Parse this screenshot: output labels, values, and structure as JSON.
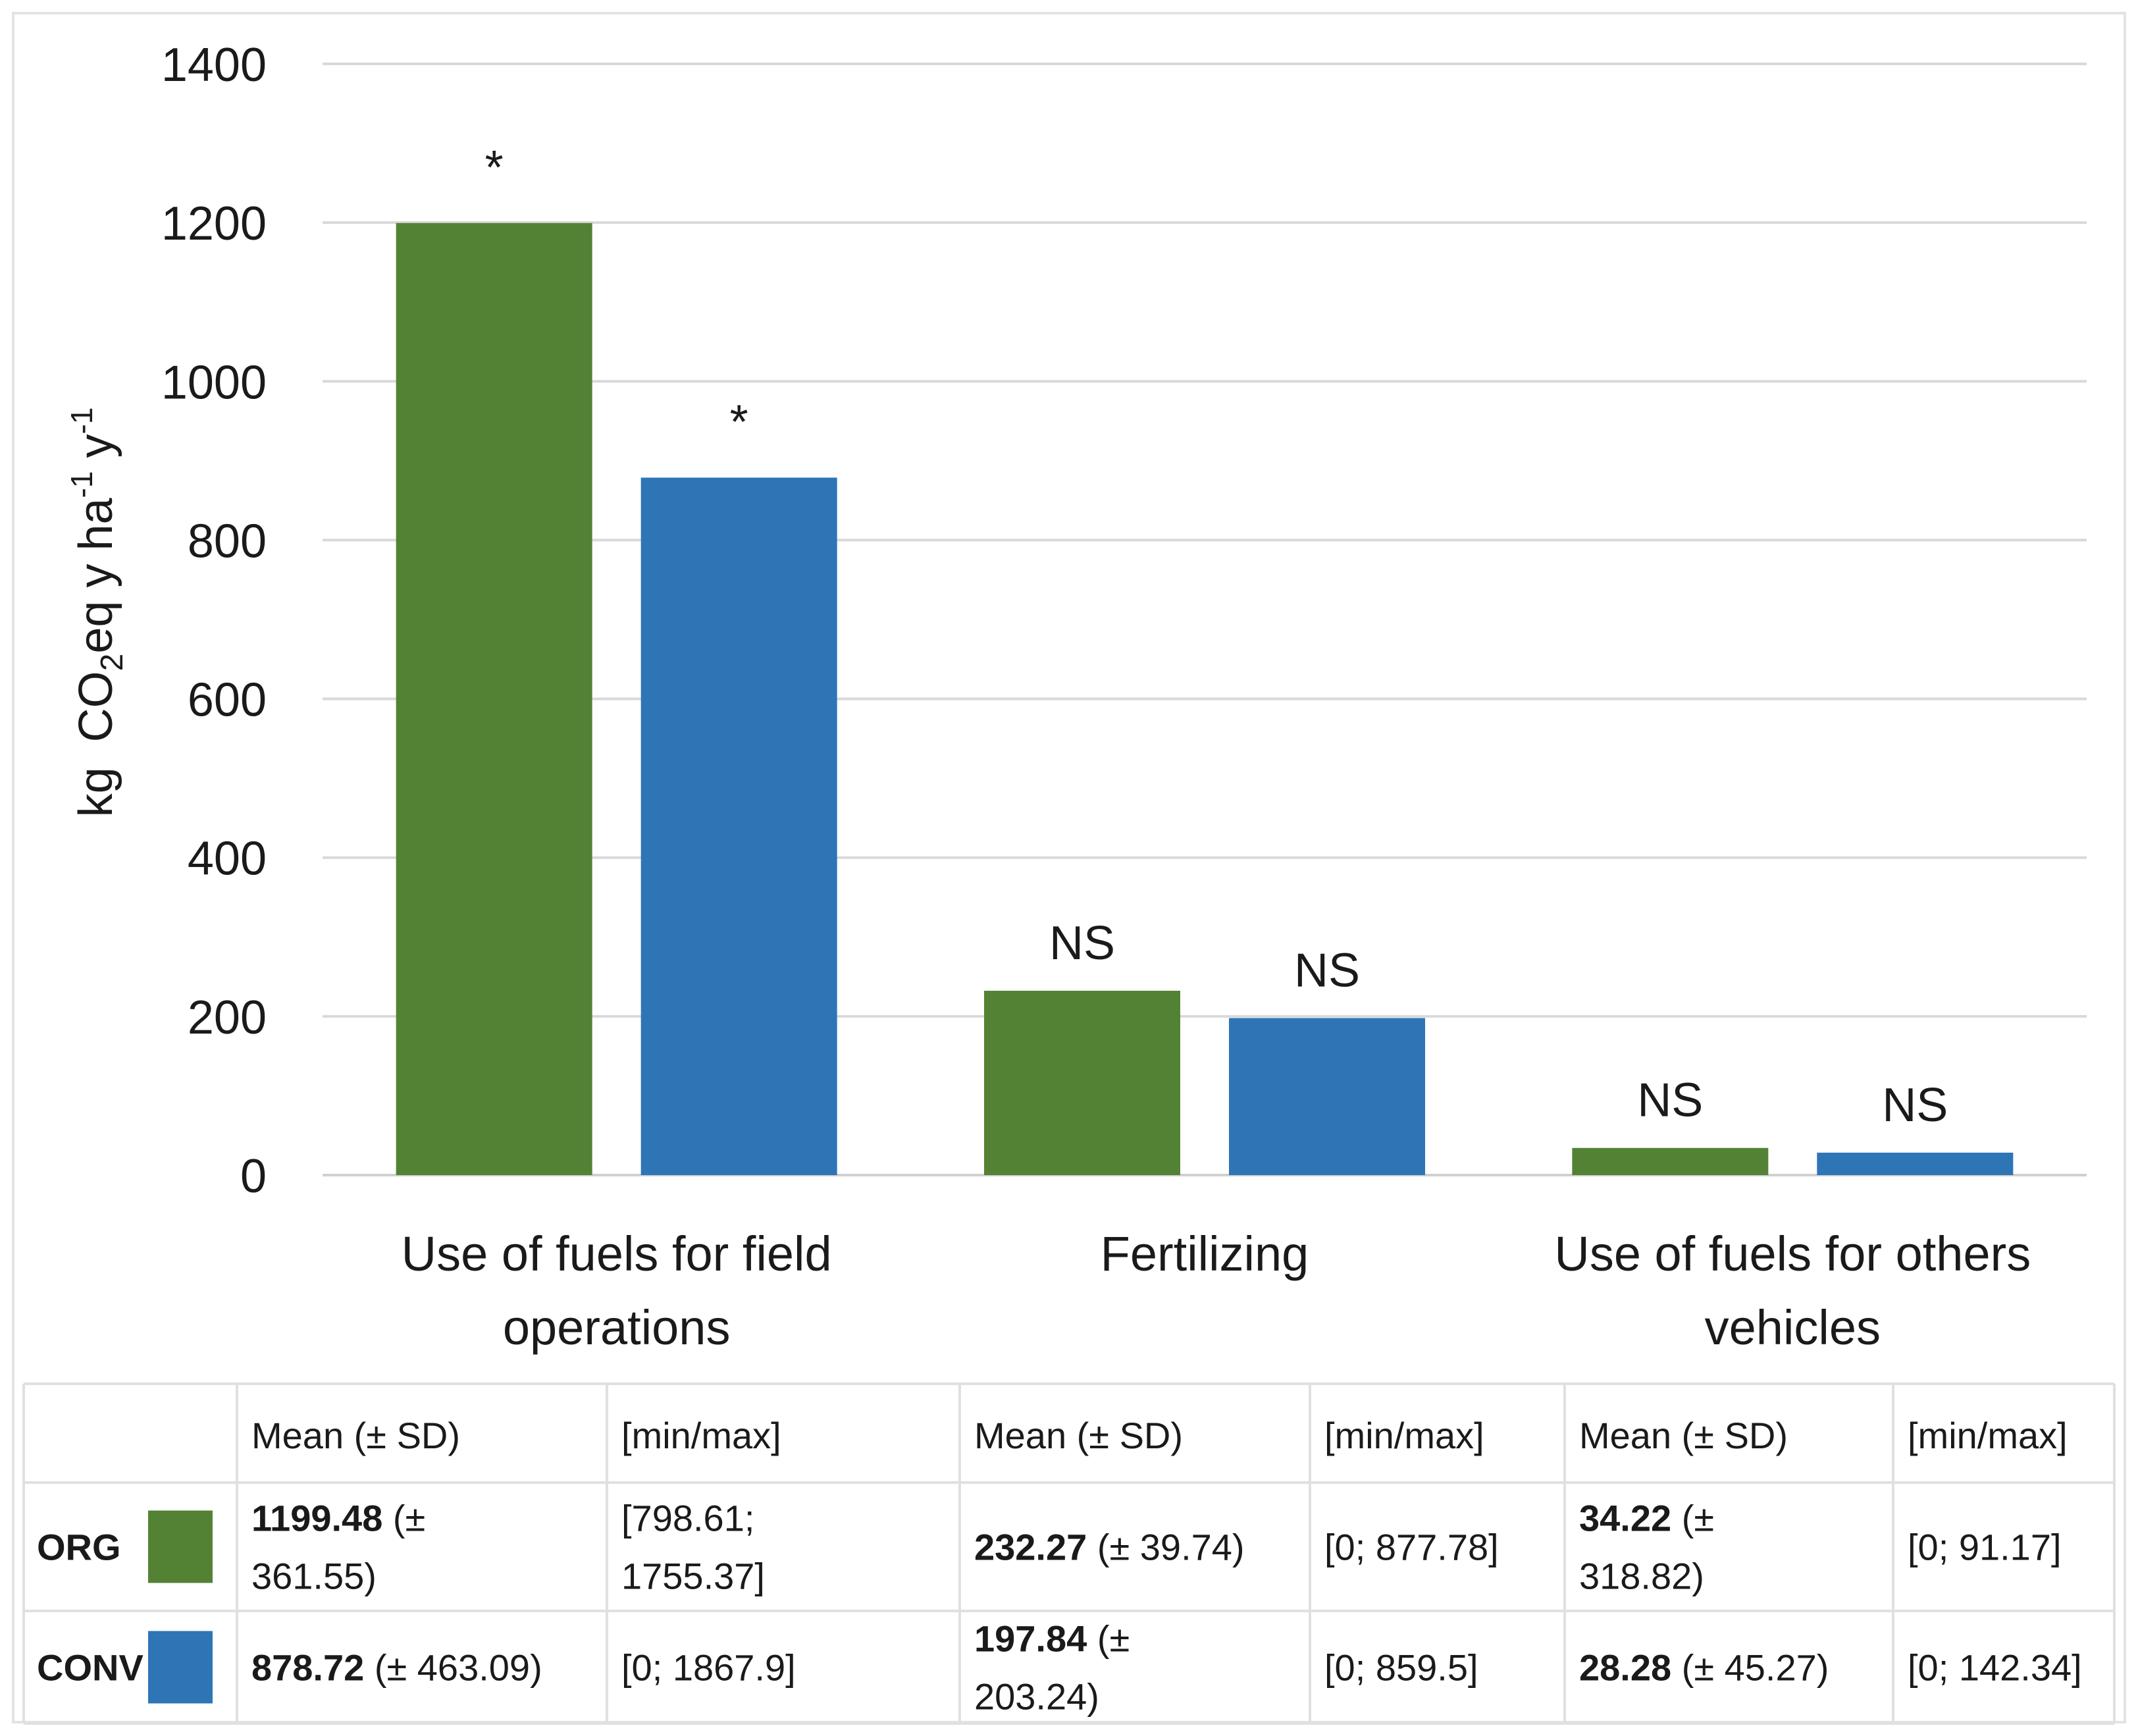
{
  "chart_data": {
    "type": "bar",
    "title": "",
    "xlabel": "",
    "ylabel": "kg CO2eq y ha-1 y-1",
    "ylabel_parts": {
      "kg": "kg",
      "co": "CO",
      "sub2": "2",
      "eq": "eq y ha",
      "neg1": "-1",
      "y": " y",
      "neg1b": "-1"
    },
    "ylim": [
      0,
      1400
    ],
    "yticks": [
      0,
      200,
      400,
      600,
      800,
      1000,
      1200,
      1400
    ],
    "ytick_labels": [
      "0",
      "200",
      "400",
      "600",
      "800",
      "1000",
      "1200",
      "1400"
    ],
    "grid": true,
    "categories": [
      {
        "lines": [
          "Use of fuels for field",
          "operations"
        ]
      },
      {
        "lines": [
          "Fertilizing"
        ]
      },
      {
        "lines": [
          "Use of fuels for others",
          "vehicles"
        ]
      }
    ],
    "series": [
      {
        "name": "ORG",
        "color": "#548235",
        "values": [
          1199.48,
          232.27,
          34.22
        ],
        "significance": [
          "*",
          "NS",
          "NS"
        ]
      },
      {
        "name": "CONV",
        "color": "#2e75b6",
        "values": [
          878.72,
          197.84,
          28.28
        ],
        "significance": [
          "*",
          "NS",
          "NS"
        ]
      }
    ],
    "table": {
      "headers": [
        "Mean (± SD)",
        "[min/max]",
        "Mean (± SD)",
        "[min/max]",
        "Mean (± SD)",
        "[min/max]"
      ],
      "rows": [
        {
          "series": "ORG",
          "cells": [
            {
              "kind": "mean",
              "lines": [
                {
                  "bold": "1199.48",
                  "rest": " (±"
                },
                {
                  "bold": "",
                  "rest": "361.55)"
                }
              ]
            },
            {
              "kind": "range",
              "lines": [
                {
                  "bold": "",
                  "rest": "[798.61;"
                },
                {
                  "bold": "",
                  "rest": "1755.37]"
                }
              ]
            },
            {
              "kind": "mean",
              "lines": [
                {
                  "bold": "232.27",
                  "rest": " (± 39.74)"
                }
              ]
            },
            {
              "kind": "range",
              "lines": [
                {
                  "bold": "",
                  "rest": "[0; 877.78]"
                }
              ]
            },
            {
              "kind": "mean",
              "lines": [
                {
                  "bold": "34.22",
                  "rest": " (±"
                },
                {
                  "bold": "",
                  "rest": "318.82)"
                }
              ]
            },
            {
              "kind": "range",
              "lines": [
                {
                  "bold": "",
                  "rest": "[0; 91.17]"
                }
              ]
            }
          ]
        },
        {
          "series": "CONV",
          "cells": [
            {
              "kind": "mean",
              "lines": [
                {
                  "bold": "878.72",
                  "rest": " (± 463.09)"
                }
              ]
            },
            {
              "kind": "range",
              "lines": [
                {
                  "bold": "",
                  "rest": "[0; 1867.9]"
                }
              ]
            },
            {
              "kind": "mean",
              "lines": [
                {
                  "bold": "197.84",
                  "rest": " (±"
                },
                {
                  "bold": "",
                  "rest": "203.24)"
                }
              ]
            },
            {
              "kind": "range",
              "lines": [
                {
                  "bold": "",
                  "rest": "[0; 859.5]"
                }
              ]
            },
            {
              "kind": "mean",
              "lines": [
                {
                  "bold": "28.28",
                  "rest": " (± 45.27)"
                }
              ]
            },
            {
              "kind": "range",
              "lines": [
                {
                  "bold": "",
                  "rest": "[0; 142.34]"
                }
              ]
            }
          ]
        }
      ]
    }
  }
}
